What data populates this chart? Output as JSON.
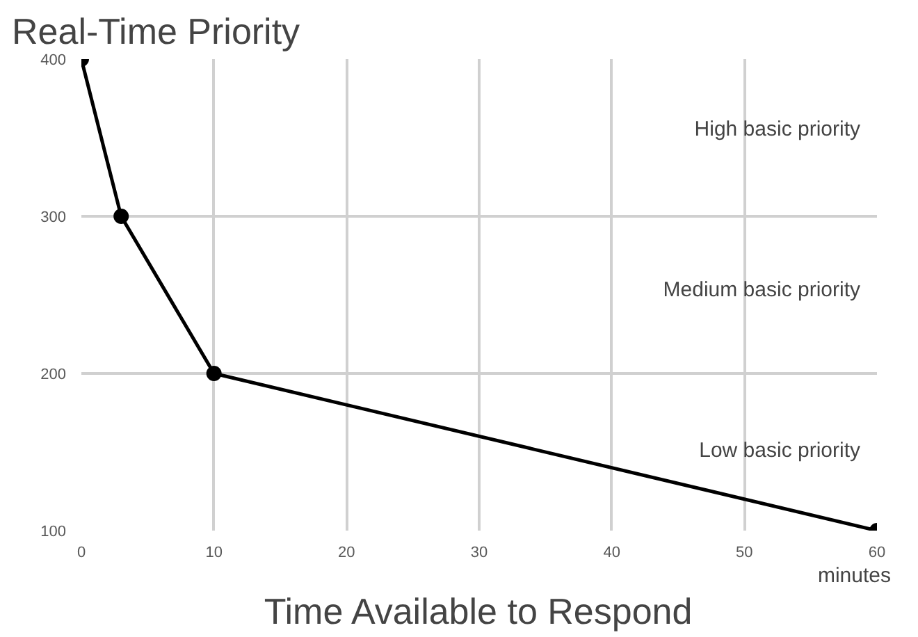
{
  "chart_data": {
    "type": "line",
    "title": "Real-Time Priority",
    "xlabel": "Time Available to Respond",
    "x": [
      0,
      3,
      10,
      60
    ],
    "series": [
      {
        "color": "#000000",
        "values": [
          400,
          300,
          200,
          100
        ]
      }
    ],
    "xlim": [
      0,
      60
    ],
    "ylim": [
      100,
      400
    ],
    "xticks": [
      0,
      10,
      20,
      30,
      40,
      50,
      60
    ],
    "yticks": [
      100,
      200,
      300,
      400
    ],
    "grid": true,
    "marker": "circle",
    "line_style": "solid",
    "annotations": [
      "High basic priority",
      "Medium basic priority",
      "Low basic priority",
      "minutes"
    ]
  }
}
